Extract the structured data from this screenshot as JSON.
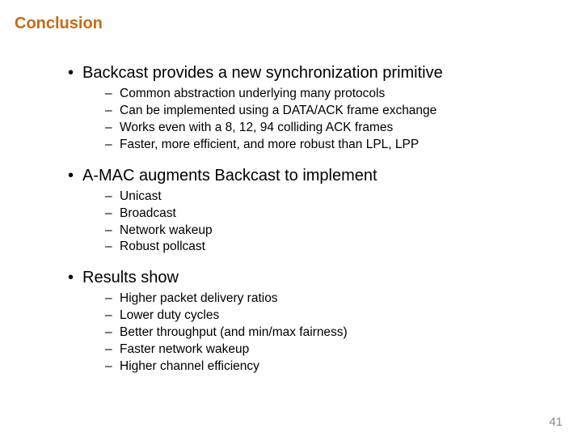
{
  "colors": {
    "title": "#c16c18",
    "body": "#000000",
    "pagenum": "#898989",
    "background": "#ffffff"
  },
  "title": "Conclusion",
  "sections": [
    {
      "heading": "Backcast provides a new synchronization primitive",
      "items": [
        "Common abstraction underlying many protocols",
        "Can be implemented using a DATA/ACK frame exchange",
        "Works even with a 8, 12, 94 colliding ACK frames",
        "Faster, more efficient, and more robust than LPL, LPP"
      ]
    },
    {
      "heading": "A-MAC augments Backcast to implement",
      "items": [
        "Unicast",
        "Broadcast",
        "Network wakeup",
        "Robust pollcast"
      ]
    },
    {
      "heading": "Results show",
      "items": [
        "Higher packet delivery ratios",
        "Lower duty cycles",
        "Better throughput (and min/max fairness)",
        "Faster network wakeup",
        "Higher channel efficiency"
      ]
    }
  ],
  "pagenum": "41"
}
